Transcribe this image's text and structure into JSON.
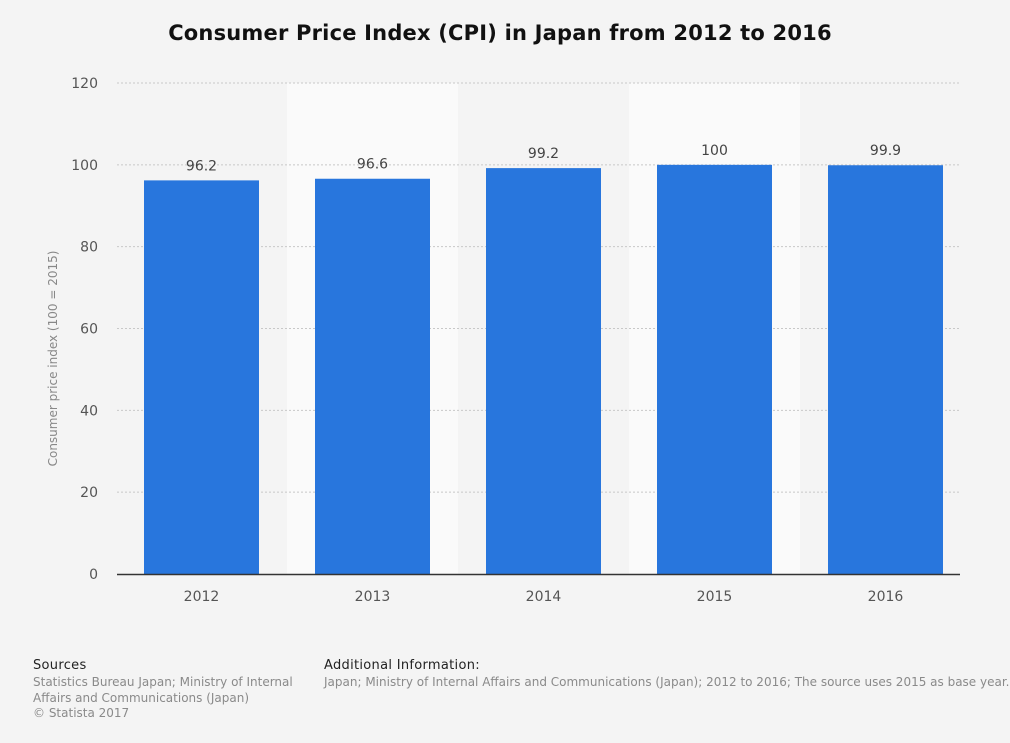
{
  "page": {
    "title": "Consumer Price Index (CPI) in Japan from 2012 to 2016"
  },
  "chart_data": {
    "type": "bar",
    "title": "Consumer Price Index (CPI) in Japan from 2012 to 2016",
    "xlabel": "",
    "ylabel": "Consumer price index (100 = 2015)",
    "categories": [
      "2012",
      "2013",
      "2014",
      "2015",
      "2016"
    ],
    "values": [
      96.2,
      96.6,
      99.2,
      100,
      99.9
    ],
    "data_labels": [
      "96.2",
      "96.6",
      "99.2",
      "100",
      "99.9"
    ],
    "ylim": [
      0,
      120
    ],
    "yticks": [
      0,
      20,
      40,
      60,
      80,
      100,
      120
    ],
    "grid": true,
    "legend": "none",
    "bar_color": "#2876dd"
  },
  "footer": {
    "sources_heading": "Sources",
    "sources_line1": "Statistics Bureau Japan; Ministry of Internal",
    "sources_line2": "Affairs and Communications (Japan)",
    "copyright": "© Statista 2017",
    "info_heading": "Additional Information:",
    "info_text": "Japan; Ministry of Internal Affairs and Communications (Japan); 2012 to 2016; The source uses 2015 as base year."
  }
}
